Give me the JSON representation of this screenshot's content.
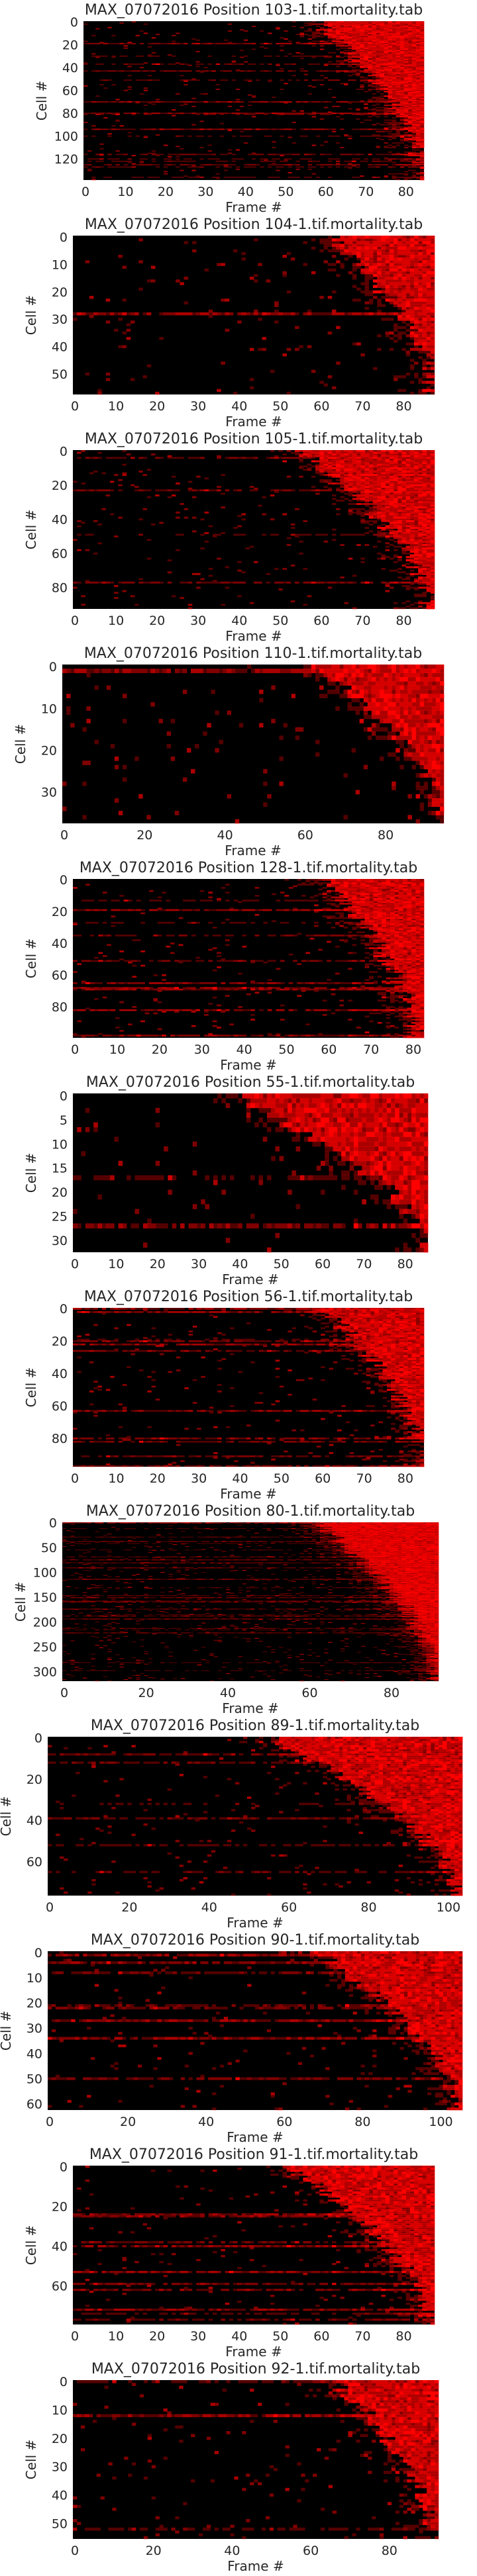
{
  "figure": {
    "panel_count": 12
  },
  "colors": {
    "background": "#ffffff",
    "text": "#262626",
    "heat_low": "#000000",
    "heat_high": "#ff0000"
  },
  "chart_data": [
    {
      "type": "heatmap",
      "title": "MAX_07072016 Position 103-1.tif.mortality.tab",
      "xlabel": "Frame #",
      "ylabel": "Cell #",
      "n_frames": 85,
      "n_cells": 139,
      "xticks": [
        0,
        10,
        20,
        30,
        40,
        50,
        60,
        70,
        80
      ],
      "yticks": [
        0,
        20,
        40,
        60,
        80,
        100,
        120
      ],
      "onset_frame_range": [
        58,
        84
      ],
      "colormap": "black-red"
    },
    {
      "type": "heatmap",
      "title": "MAX_07072016 Position 104-1.tif.mortality.tab",
      "xlabel": "Frame #",
      "ylabel": "Cell #",
      "n_frames": 88,
      "n_cells": 58,
      "xticks": [
        0,
        10,
        20,
        30,
        40,
        50,
        60,
        70,
        80
      ],
      "yticks": [
        0,
        10,
        20,
        30,
        40,
        50
      ],
      "onset_frame_range": [
        62,
        87
      ],
      "colormap": "black-red"
    },
    {
      "type": "heatmap",
      "title": "MAX_07072016 Position 105-1.tif.mortality.tab",
      "xlabel": "Frame #",
      "ylabel": "Cell #",
      "n_frames": 88,
      "n_cells": 93,
      "xticks": [
        0,
        10,
        20,
        30,
        40,
        50,
        60,
        70,
        80
      ],
      "yticks": [
        0,
        20,
        40,
        60,
        80
      ],
      "onset_frame_range": [
        55,
        86
      ],
      "colormap": "black-red"
    },
    {
      "type": "heatmap",
      "title": "MAX_07072016 Position 110-1.tif.mortality.tab",
      "xlabel": "Frame #",
      "ylabel": "Cell #",
      "n_frames": 95,
      "n_cells": 38,
      "xticks": [
        0,
        20,
        40,
        60,
        80
      ],
      "yticks": [
        0,
        10,
        20,
        30
      ],
      "onset_frame_range": [
        62,
        94
      ],
      "colormap": "black-red"
    },
    {
      "type": "heatmap",
      "title": "MAX_07072016 Position 128-1.tif.mortality.tab",
      "xlabel": "Frame #",
      "ylabel": "Cell #",
      "n_frames": 83,
      "n_cells": 100,
      "xticks": [
        0,
        10,
        20,
        30,
        40,
        50,
        60,
        70,
        80
      ],
      "yticks": [
        0,
        20,
        40,
        60,
        80
      ],
      "onset_frame_range": [
        58,
        80
      ],
      "colormap": "black-red"
    },
    {
      "type": "heatmap",
      "title": "MAX_07072016 Position 55-1.tif.mortality.tab",
      "xlabel": "Frame #",
      "ylabel": "Cell #",
      "n_frames": 86,
      "n_cells": 33,
      "xticks": [
        0,
        10,
        20,
        30,
        40,
        50,
        60,
        70,
        80
      ],
      "yticks": [
        0,
        5,
        10,
        15,
        20,
        25,
        30
      ],
      "onset_frame_range": [
        38,
        85
      ],
      "colormap": "black-red"
    },
    {
      "type": "heatmap",
      "title": "MAX_07072016 Position 56-1.tif.mortality.tab",
      "xlabel": "Frame #",
      "ylabel": "Cell #",
      "n_frames": 85,
      "n_cells": 98,
      "xticks": [
        0,
        10,
        20,
        30,
        40,
        50,
        60,
        70,
        80
      ],
      "yticks": [
        0,
        20,
        40,
        60,
        80
      ],
      "onset_frame_range": [
        60,
        84
      ],
      "colormap": "black-red"
    },
    {
      "type": "heatmap",
      "title": "MAX_07072016 Position 80-1.tif.mortality.tab",
      "xlabel": "Frame #",
      "ylabel": "Cell #",
      "n_frames": 92,
      "n_cells": 320,
      "xticks": [
        0,
        20,
        40,
        60,
        80
      ],
      "yticks": [
        0,
        50,
        100,
        150,
        200,
        250,
        300
      ],
      "onset_frame_range": [
        62,
        91
      ],
      "colormap": "black-red"
    },
    {
      "type": "heatmap",
      "title": "MAX_07072016 Position 89-1.tif.mortality.tab",
      "xlabel": "Frame #",
      "ylabel": "Cell #",
      "n_frames": 104,
      "n_cells": 77,
      "xticks": [
        0,
        20,
        40,
        60,
        80,
        100
      ],
      "yticks": [
        0,
        20,
        40,
        60
      ],
      "onset_frame_range": [
        55,
        102
      ],
      "colormap": "black-red"
    },
    {
      "type": "heatmap",
      "title": "MAX_07072016 Position 90-1.tif.mortality.tab",
      "xlabel": "Frame #",
      "ylabel": "Cell #",
      "n_frames": 106,
      "n_cells": 63,
      "xticks": [
        0,
        20,
        40,
        60,
        80,
        100
      ],
      "yticks": [
        0,
        10,
        20,
        30,
        40,
        50,
        60
      ],
      "onset_frame_range": [
        68,
        104
      ],
      "colormap": "black-red"
    },
    {
      "type": "heatmap",
      "title": "MAX_07072016 Position 91-1.tif.mortality.tab",
      "xlabel": "Frame #",
      "ylabel": "Cell #",
      "n_frames": 88,
      "n_cells": 80,
      "xticks": [
        0,
        10,
        20,
        30,
        40,
        50,
        60,
        70,
        80
      ],
      "yticks": [
        0,
        20,
        40,
        60
      ],
      "onset_frame_range": [
        52,
        86
      ],
      "colormap": "black-red"
    },
    {
      "type": "heatmap",
      "title": "MAX_07072016 Position 92-1.tif.mortality.tab",
      "xlabel": "Frame #",
      "ylabel": "Cell #",
      "n_frames": 93,
      "n_cells": 56,
      "xticks": [
        0,
        20,
        40,
        60,
        80
      ],
      "yticks": [
        0,
        10,
        20,
        30,
        40,
        50
      ],
      "onset_frame_range": [
        66,
        91
      ],
      "colormap": "black-red"
    }
  ]
}
